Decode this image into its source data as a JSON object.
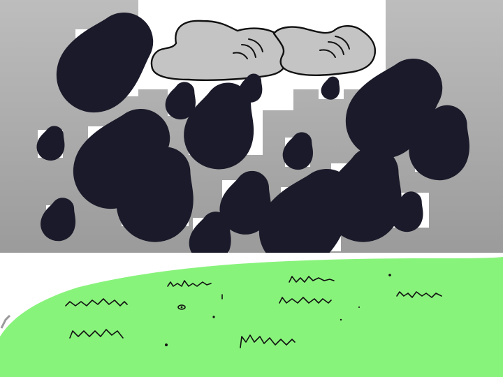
{
  "scene": {
    "sky_color_top": "#b8b8b8",
    "sky_color_bottom": "#9a9a9a",
    "ground_color": "#88f37b",
    "drop_color": "#8fa8f0",
    "cloud_color": "#c4c4c4",
    "cloud_count": 2,
    "raindrop_count": 20,
    "grass_tuft_count": 8
  }
}
